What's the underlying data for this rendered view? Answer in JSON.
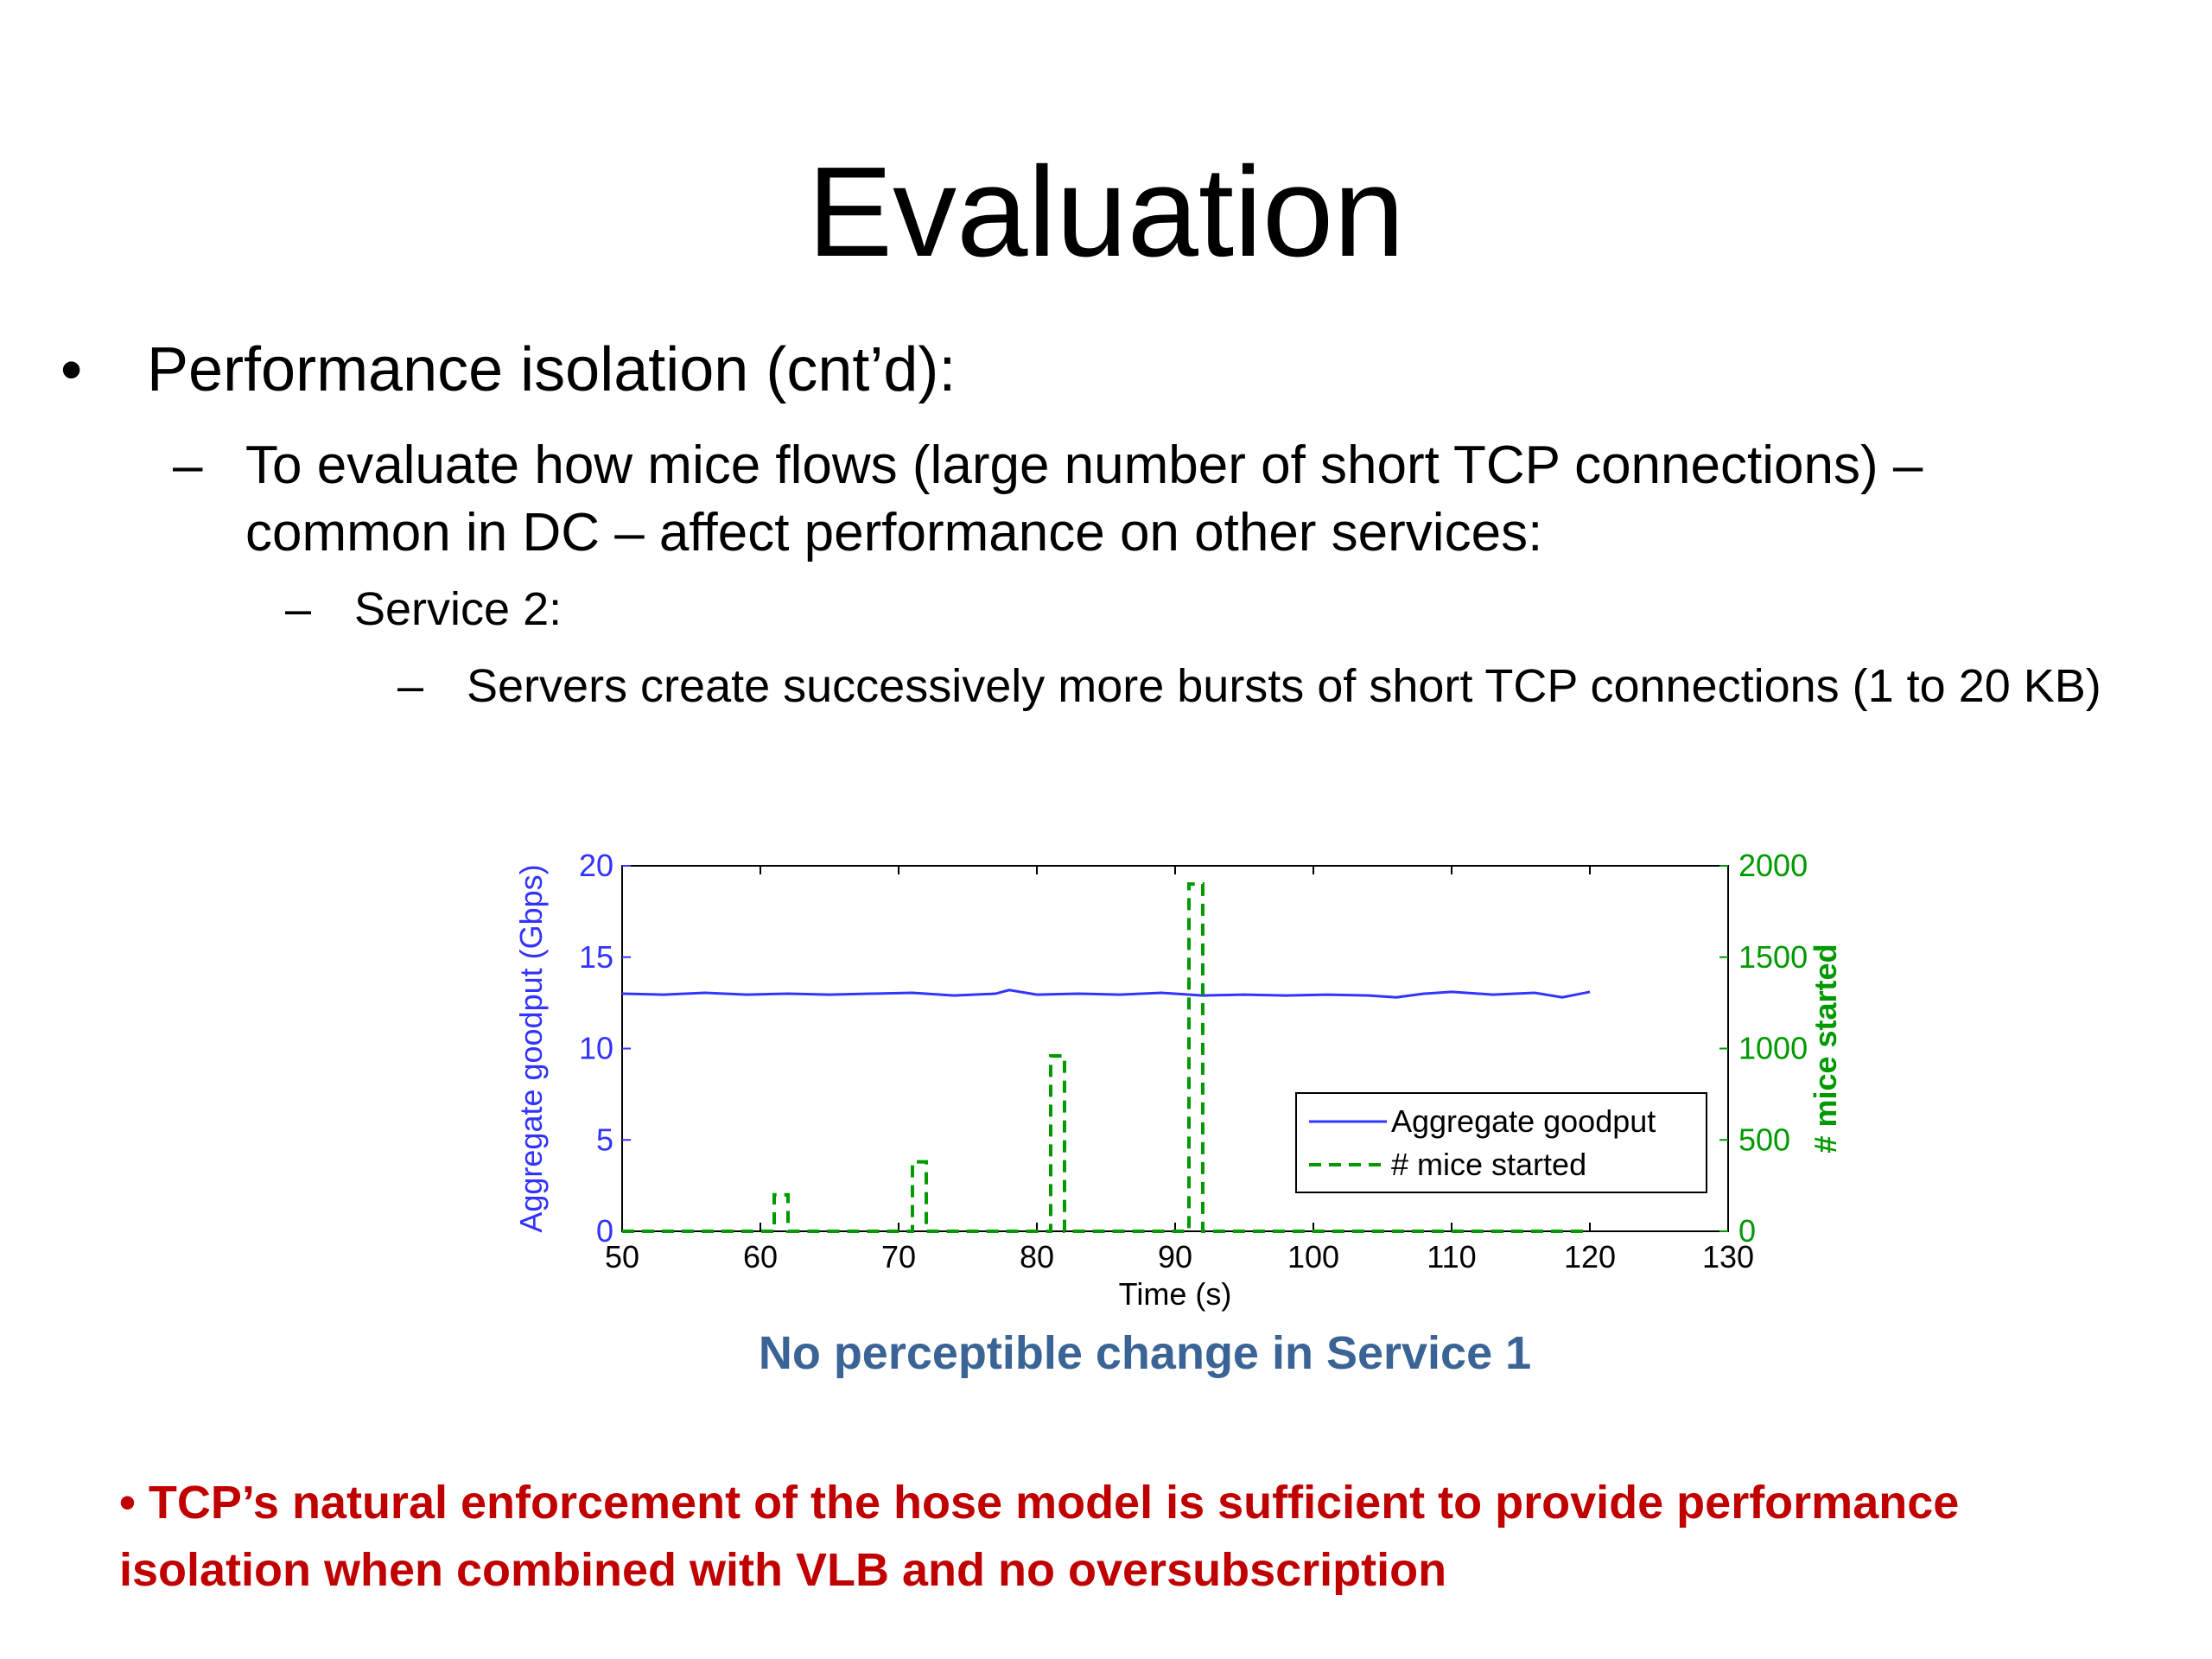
{
  "slide": {
    "title": "Evaluation",
    "bullet1": {
      "marker": "•",
      "text": "Performance isolation (cnt’d):"
    },
    "bullet2": {
      "marker": "–",
      "text": "To evaluate how mice flows (large number of short TCP connections) – common in DC – affect performance on other services:"
    },
    "bullet3": {
      "marker": "–",
      "text": "Service 2:"
    },
    "bullet4": {
      "marker": "–",
      "text": "Servers create successively more bursts of short TCP connections (1 to 20 KB)"
    },
    "caption": "No perceptible change in Service 1",
    "conclusion": "• TCP’s natural enforcement of the hose model is sufficient to provide performance isolation when combined with VLB and no oversubscription"
  },
  "colors": {
    "goodput": "#3333ff",
    "mice": "#009900",
    "caption": "#3a6396",
    "conclusion": "#c00000"
  },
  "chart_data": {
    "type": "line",
    "xlabel": "Time (s)",
    "ylabel": "Aggregate goodput (Gbps)",
    "y2label": "# mice started",
    "xlim": [
      50,
      130
    ],
    "ylim": [
      0,
      20
    ],
    "y2lim": [
      0,
      2000
    ],
    "xticks": [
      50,
      60,
      70,
      80,
      90,
      100,
      110,
      120,
      130
    ],
    "yticks": [
      0,
      5,
      10,
      15,
      20
    ],
    "y2ticks": [
      0,
      500,
      1000,
      1500,
      2000
    ],
    "legend_position": "lower-right",
    "series": [
      {
        "name": "Aggregate goodput",
        "axis": "left",
        "style": "solid",
        "x": [
          50,
          53,
          56,
          59,
          62,
          65,
          68,
          71,
          74,
          77,
          78,
          80,
          83,
          86,
          89,
          92,
          95,
          98,
          101,
          104,
          106,
          108,
          110,
          113,
          116,
          118,
          120
        ],
        "y": [
          13.0,
          12.95,
          13.05,
          12.95,
          13.0,
          12.95,
          13.0,
          13.05,
          12.9,
          13.0,
          13.2,
          12.95,
          13.0,
          12.95,
          13.05,
          12.9,
          12.95,
          12.9,
          12.95,
          12.9,
          12.8,
          13.0,
          13.1,
          12.95,
          13.05,
          12.8,
          13.1
        ]
      },
      {
        "name": "# mice started",
        "axis": "right",
        "style": "dashed",
        "x": [
          50,
          61,
          61,
          62,
          62,
          71,
          71,
          72,
          72,
          81,
          81,
          82,
          82,
          91,
          91,
          92,
          92,
          120
        ],
        "y": [
          0,
          0,
          200,
          200,
          0,
          0,
          380,
          380,
          0,
          0,
          960,
          960,
          0,
          0,
          1900,
          1900,
          0,
          0
        ]
      }
    ]
  }
}
